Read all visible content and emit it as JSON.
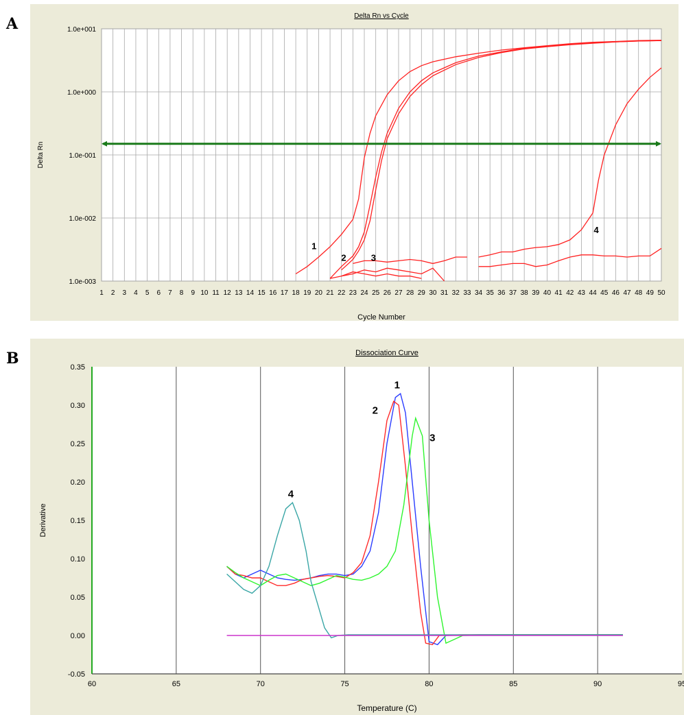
{
  "figure": {
    "panel_a_label": "A",
    "panel_b_label": "B"
  },
  "chart_data": [
    {
      "type": "line",
      "panel": "A",
      "title": "Delta Rn vs Cycle",
      "xlabel": "Cycle Number",
      "ylabel": "Delta Rn",
      "yscale": "log",
      "ylim": [
        0.001,
        10
      ],
      "xlim": [
        1,
        50
      ],
      "yticks": [
        "1.0e-003",
        "1.0e-002",
        "1.0e-001",
        "1.0e+000",
        "1.0e+001"
      ],
      "xticks": [
        1,
        2,
        3,
        4,
        5,
        6,
        7,
        8,
        9,
        10,
        11,
        12,
        13,
        14,
        15,
        16,
        17,
        18,
        19,
        20,
        21,
        22,
        23,
        24,
        25,
        26,
        27,
        28,
        29,
        30,
        31,
        32,
        33,
        34,
        35,
        36,
        37,
        38,
        39,
        40,
        41,
        42,
        43,
        44,
        45,
        46,
        47,
        48,
        49,
        50
      ],
      "grid": true,
      "threshold": 0.15,
      "threshold_color": "#1a7a1a",
      "curve_color": "#ff2020",
      "series": [
        {
          "label": "1",
          "points": [
            [
              18,
              0.0013
            ],
            [
              19,
              0.0017
            ],
            [
              20,
              0.0024
            ],
            [
              21,
              0.0035
            ],
            [
              22,
              0.0055
            ],
            [
              23,
              0.0095
            ],
            [
              23.5,
              0.02
            ],
            [
              24,
              0.09
            ],
            [
              24.5,
              0.22
            ],
            [
              25,
              0.42
            ],
            [
              26,
              0.9
            ],
            [
              27,
              1.5
            ],
            [
              28,
              2.1
            ],
            [
              29,
              2.6
            ],
            [
              30,
              3.0
            ],
            [
              32,
              3.6
            ],
            [
              34,
              4.1
            ],
            [
              36,
              4.6
            ],
            [
              38,
              5.0
            ],
            [
              40,
              5.4
            ],
            [
              42,
              5.8
            ],
            [
              44,
              6.1
            ],
            [
              46,
              6.3
            ],
            [
              48,
              6.5
            ],
            [
              50,
              6.6
            ]
          ]
        },
        {
          "label": "2",
          "points": [
            [
              21,
              0.0011
            ],
            [
              22,
              0.0017
            ],
            [
              23,
              0.0025
            ],
            [
              23.5,
              0.0035
            ],
            [
              24,
              0.006
            ],
            [
              24.5,
              0.016
            ],
            [
              25,
              0.045
            ],
            [
              25.5,
              0.11
            ],
            [
              26,
              0.22
            ],
            [
              27,
              0.55
            ],
            [
              28,
              1.0
            ],
            [
              29,
              1.5
            ],
            [
              30,
              2.0
            ],
            [
              32,
              2.9
            ],
            [
              34,
              3.7
            ],
            [
              36,
              4.3
            ],
            [
              38,
              4.9
            ],
            [
              40,
              5.3
            ],
            [
              42,
              5.7
            ],
            [
              44,
              6.0
            ],
            [
              46,
              6.2
            ],
            [
              48,
              6.4
            ],
            [
              50,
              6.5
            ]
          ]
        },
        {
          "label": "3",
          "points": [
            [
              22,
              0.0015
            ],
            [
              23,
              0.0022
            ],
            [
              23.5,
              0.003
            ],
            [
              24,
              0.0045
            ],
            [
              24.5,
              0.009
            ],
            [
              25,
              0.028
            ],
            [
              25.5,
              0.08
            ],
            [
              26,
              0.18
            ],
            [
              27,
              0.45
            ],
            [
              28,
              0.85
            ],
            [
              29,
              1.3
            ],
            [
              30,
              1.8
            ],
            [
              32,
              2.7
            ],
            [
              34,
              3.5
            ],
            [
              36,
              4.2
            ],
            [
              38,
              4.8
            ],
            [
              40,
              5.2
            ],
            [
              42,
              5.6
            ],
            [
              44,
              5.9
            ],
            [
              46,
              6.2
            ],
            [
              48,
              6.4
            ],
            [
              50,
              6.5
            ]
          ]
        },
        {
          "label": "4",
          "points": [
            [
              34,
              0.0024
            ],
            [
              35,
              0.0026
            ],
            [
              36,
              0.0029
            ],
            [
              37,
              0.0029
            ],
            [
              38,
              0.0032
            ],
            [
              39,
              0.0034
            ],
            [
              40,
              0.0035
            ],
            [
              41,
              0.0038
            ],
            [
              42,
              0.0045
            ],
            [
              43,
              0.0065
            ],
            [
              44,
              0.012
            ],
            [
              44.5,
              0.04
            ],
            [
              45,
              0.1
            ],
            [
              46,
              0.3
            ],
            [
              47,
              0.65
            ],
            [
              48,
              1.1
            ],
            [
              49,
              1.7
            ],
            [
              50,
              2.4
            ]
          ]
        },
        {
          "label": "",
          "points": [
            [
              23,
              0.0019
            ],
            [
              24,
              0.0021
            ],
            [
              25,
              0.0021
            ],
            [
              26,
              0.002
            ],
            [
              27,
              0.0021
            ],
            [
              28,
              0.0022
            ],
            [
              29,
              0.0021
            ],
            [
              30,
              0.0019
            ],
            [
              31,
              0.0021
            ],
            [
              32,
              0.0024
            ],
            [
              33,
              0.0024
            ]
          ]
        },
        {
          "label": "",
          "points": [
            [
              21,
              0.0011
            ],
            [
              22,
              0.0012
            ],
            [
              23,
              0.0013
            ],
            [
              24,
              0.0015
            ],
            [
              25,
              0.0014
            ],
            [
              26,
              0.0016
            ],
            [
              27,
              0.0015
            ],
            [
              28,
              0.0014
            ],
            [
              29,
              0.0013
            ],
            [
              30,
              0.0016
            ],
            [
              31,
              0.001
            ]
          ]
        },
        {
          "label": "",
          "points": [
            [
              22,
              0.0012
            ],
            [
              23,
              0.0014
            ],
            [
              24,
              0.0013
            ],
            [
              25,
              0.0012
            ],
            [
              26,
              0.0013
            ],
            [
              27,
              0.0012
            ],
            [
              28,
              0.0012
            ],
            [
              29,
              0.0011
            ]
          ]
        },
        {
          "label": "",
          "points": [
            [
              34,
              0.0017
            ],
            [
              35,
              0.0017
            ],
            [
              36,
              0.0018
            ],
            [
              37,
              0.0019
            ],
            [
              38,
              0.0019
            ],
            [
              39,
              0.0017
            ],
            [
              40,
              0.0018
            ],
            [
              41,
              0.0021
            ],
            [
              42,
              0.0024
            ],
            [
              43,
              0.0026
            ],
            [
              44,
              0.0026
            ],
            [
              45,
              0.0025
            ],
            [
              46,
              0.0025
            ],
            [
              47,
              0.0024
            ],
            [
              48,
              0.0025
            ],
            [
              49,
              0.0025
            ],
            [
              50,
              0.0033
            ]
          ]
        }
      ],
      "annotations": [
        "1",
        "2",
        "3",
        "4"
      ]
    },
    {
      "type": "line",
      "panel": "B",
      "title": "Dissociation Curve",
      "xlabel": "Temperature (C)",
      "ylabel": "Derivative",
      "xlim": [
        60,
        95
      ],
      "ylim": [
        -0.05,
        0.35
      ],
      "xticks": [
        "60",
        "65",
        "70",
        "75",
        "80",
        "85",
        "90",
        "95"
      ],
      "yticks": [
        "-0.05",
        "0.00",
        "0.05",
        "0.10",
        "0.15",
        "0.20",
        "0.25",
        "0.30",
        "0.35"
      ],
      "grid": true,
      "series": [
        {
          "label": "1",
          "color": "#2a3cff",
          "points": [
            [
              68,
              0.09
            ],
            [
              68.5,
              0.08
            ],
            [
              69,
              0.075
            ],
            [
              69.5,
              0.08
            ],
            [
              70,
              0.085
            ],
            [
              70.5,
              0.08
            ],
            [
              71,
              0.075
            ],
            [
              71.5,
              0.073
            ],
            [
              72,
              0.072
            ],
            [
              72.5,
              0.073
            ],
            [
              73,
              0.075
            ],
            [
              73.5,
              0.078
            ],
            [
              74,
              0.08
            ],
            [
              74.5,
              0.08
            ],
            [
              75,
              0.078
            ],
            [
              75.5,
              0.08
            ],
            [
              76,
              0.09
            ],
            [
              76.5,
              0.11
            ],
            [
              77,
              0.16
            ],
            [
              77.5,
              0.25
            ],
            [
              78,
              0.31
            ],
            [
              78.3,
              0.315
            ],
            [
              78.6,
              0.29
            ],
            [
              79,
              0.2
            ],
            [
              79.5,
              0.09
            ],
            [
              80,
              -0.008
            ],
            [
              80.5,
              -0.012
            ],
            [
              81,
              0.0
            ],
            [
              83,
              0.001
            ],
            [
              91.5,
              0.001
            ]
          ]
        },
        {
          "label": "2",
          "color": "#ff2a2a",
          "points": [
            [
              68,
              0.09
            ],
            [
              68.5,
              0.08
            ],
            [
              69,
              0.078
            ],
            [
              69.5,
              0.075
            ],
            [
              70,
              0.075
            ],
            [
              70.5,
              0.07
            ],
            [
              71,
              0.065
            ],
            [
              71.5,
              0.065
            ],
            [
              72,
              0.068
            ],
            [
              72.5,
              0.073
            ],
            [
              73,
              0.075
            ],
            [
              73.5,
              0.077
            ],
            [
              74,
              0.078
            ],
            [
              74.5,
              0.077
            ],
            [
              75,
              0.075
            ],
            [
              75.5,
              0.082
            ],
            [
              76,
              0.095
            ],
            [
              76.5,
              0.13
            ],
            [
              77,
              0.2
            ],
            [
              77.5,
              0.28
            ],
            [
              77.9,
              0.305
            ],
            [
              78.2,
              0.3
            ],
            [
              78.6,
              0.22
            ],
            [
              79,
              0.13
            ],
            [
              79.5,
              0.03
            ],
            [
              79.8,
              -0.01
            ],
            [
              80.2,
              -0.012
            ],
            [
              80.6,
              0.0
            ],
            [
              82,
              0.001
            ],
            [
              91.5,
              0.001
            ]
          ]
        },
        {
          "label": "3",
          "color": "#2ef52e",
          "points": [
            [
              68,
              0.09
            ],
            [
              68.5,
              0.082
            ],
            [
              69,
              0.075
            ],
            [
              69.5,
              0.07
            ],
            [
              70,
              0.065
            ],
            [
              70.5,
              0.072
            ],
            [
              71,
              0.078
            ],
            [
              71.5,
              0.08
            ],
            [
              72,
              0.075
            ],
            [
              72.5,
              0.07
            ],
            [
              73,
              0.065
            ],
            [
              73.5,
              0.068
            ],
            [
              74,
              0.073
            ],
            [
              74.5,
              0.078
            ],
            [
              75,
              0.076
            ],
            [
              75.5,
              0.073
            ],
            [
              76,
              0.072
            ],
            [
              76.5,
              0.075
            ],
            [
              77,
              0.08
            ],
            [
              77.5,
              0.09
            ],
            [
              78,
              0.11
            ],
            [
              78.5,
              0.17
            ],
            [
              79,
              0.26
            ],
            [
              79.2,
              0.283
            ],
            [
              79.6,
              0.26
            ],
            [
              80,
              0.15
            ],
            [
              80.5,
              0.05
            ],
            [
              81,
              -0.01
            ],
            [
              81.5,
              -0.005
            ],
            [
              82,
              0.0
            ],
            [
              84,
              0.001
            ],
            [
              91.5,
              0.001
            ]
          ]
        },
        {
          "label": "4",
          "color": "#3aa6a6",
          "points": [
            [
              68,
              0.08
            ],
            [
              68.5,
              0.07
            ],
            [
              69,
              0.06
            ],
            [
              69.5,
              0.055
            ],
            [
              70,
              0.065
            ],
            [
              70.5,
              0.09
            ],
            [
              71,
              0.13
            ],
            [
              71.5,
              0.165
            ],
            [
              71.9,
              0.173
            ],
            [
              72.3,
              0.15
            ],
            [
              72.7,
              0.11
            ],
            [
              73,
              0.07
            ],
            [
              73.4,
              0.04
            ],
            [
              73.8,
              0.01
            ],
            [
              74.2,
              -0.003
            ],
            [
              74.6,
              0.0
            ],
            [
              75.2,
              0.001
            ],
            [
              91.5,
              0.001
            ]
          ]
        },
        {
          "label": "",
          "color": "#cc33cc",
          "points": [
            [
              68,
              0.0
            ],
            [
              91.5,
              0.0
            ]
          ]
        }
      ],
      "annotations": [
        "1",
        "2",
        "3",
        "4"
      ]
    }
  ]
}
